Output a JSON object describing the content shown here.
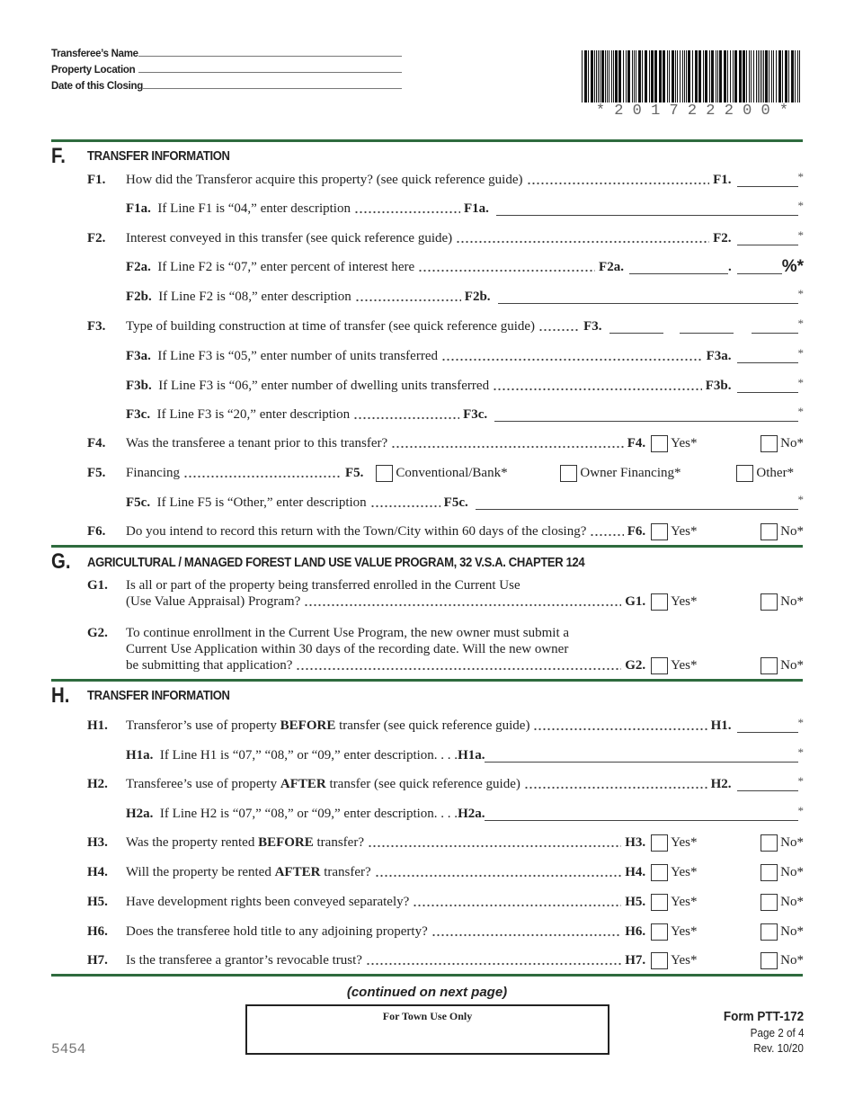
{
  "header": {
    "name_label": "Transferee’s Name",
    "location_label": "Property Location",
    "date_label": "Date of this Closing",
    "barcode_text": "* 2 0 1 7 2 2 2 0 0 *"
  },
  "F": {
    "letter": "F.",
    "title": "TRANSFER INFORMATION",
    "f1": {
      "num": "F1.",
      "text": "How did the Transferor acquire this property? (see quick reference guide)",
      "ref": "F1."
    },
    "f1a": {
      "label": "F1a.",
      "text": "If Line F1 is “04,” enter description",
      "ref": "F1a."
    },
    "f2": {
      "num": "F2.",
      "text": "Interest conveyed in this transfer (see quick reference guide)",
      "ref": "F2."
    },
    "f2a": {
      "label": "F2a.",
      "text": "If Line F2 is “07,” enter percent of interest here",
      "ref": "F2a.",
      "dot": ".",
      "pct": "%*"
    },
    "f2b": {
      "label": "F2b.",
      "text": "If Line F2 is “08,” enter description",
      "ref": "F2b."
    },
    "f3": {
      "num": "F3.",
      "text": "Type of building construction at time of transfer (see quick reference guide)",
      "ref": "F3."
    },
    "f3a": {
      "label": "F3a.",
      "text": "If Line F3 is “05,” enter number of units transferred",
      "ref": "F3a."
    },
    "f3b": {
      "label": "F3b.",
      "text": "If Line F3 is “06,” enter number of dwelling units transferred",
      "ref": "F3b."
    },
    "f3c": {
      "label": "F3c.",
      "text": "If Line F3 is “20,” enter description",
      "ref": "F3c."
    },
    "f4": {
      "num": "F4.",
      "text": "Was the transferee a tenant prior to this transfer?",
      "ref": "F4."
    },
    "f5": {
      "num": "F5.",
      "text": "Financing",
      "ref": "F5.",
      "opt1": "Conventional/Bank*",
      "opt2": "Owner Financing*",
      "opt3": "Other*"
    },
    "f5c": {
      "label": "F5c.",
      "text": "If Line F5 is “Other,” enter description",
      "ref": "F5c."
    },
    "f6": {
      "num": "F6.",
      "text": "Do you intend to record this return with the Town/City within 60 days of the closing?",
      "ref": "F6."
    }
  },
  "G": {
    "letter": "G.",
    "title": "AGRICULTURAL / MANAGED FOREST LAND USE VALUE PROGRAM, 32 V.S.A. CHAPTER 124",
    "g1": {
      "num": "G1.",
      "line1": "Is all or part of the property being transferred enrolled in the Current Use",
      "line2": "(Use Value Appraisal) Program?",
      "ref": "G1."
    },
    "g2": {
      "num": "G2.",
      "line1": "To continue enrollment in the Current Use Program, the new owner must submit a",
      "line2": "Current Use Application within 30 days of the recording date.  Will the new owner",
      "line3": "be submitting that application?",
      "ref": "G2."
    }
  },
  "H": {
    "letter": "H.",
    "title": "TRANSFER INFORMATION",
    "h1": {
      "num": "H1.",
      "pre": "Transferor’s use of property ",
      "bold": "BEFORE",
      "post": " transfer (see quick reference guide)",
      "ref": "H1."
    },
    "h1a": {
      "label": "H1a.",
      "text": "If Line H1 is “07,” “08,” or “09,” enter description. . . .",
      "ref": "H1a."
    },
    "h2": {
      "num": "H2.",
      "pre": "Transferee’s use of property ",
      "bold": "AFTER",
      "post": " transfer (see quick reference guide)",
      "ref": "H2."
    },
    "h2a": {
      "label": "H2a.",
      "text": "If Line H2 is “07,” “08,” or “09,” enter description. . . .",
      "ref": "H2a."
    },
    "h3": {
      "num": "H3.",
      "pre": "Was the property rented ",
      "bold": "BEFORE",
      "post": " transfer?",
      "ref": "H3."
    },
    "h4": {
      "num": "H4.",
      "pre": "Will the property be rented ",
      "bold": "AFTER",
      "post": " transfer?",
      "ref": "H4."
    },
    "h5": {
      "num": "H5.",
      "text": "Have development rights been conveyed separately?",
      "ref": "H5."
    },
    "h6": {
      "num": "H6.",
      "text": "Does the transferee hold title to any adjoining property?",
      "ref": "H6."
    },
    "h7": {
      "num": "H7.",
      "text": "Is the transferee a grantor’s revocable trust?",
      "ref": "H7."
    }
  },
  "common": {
    "yes": "Yes*",
    "no": "No*",
    "ast": "*"
  },
  "footer": {
    "continued": "(continued on next page)",
    "town_use": "For Town Use Only",
    "form": "Form PTT-172",
    "page": "Page 2 of 4",
    "rev": "Rev. 10/20",
    "code": "5454"
  }
}
